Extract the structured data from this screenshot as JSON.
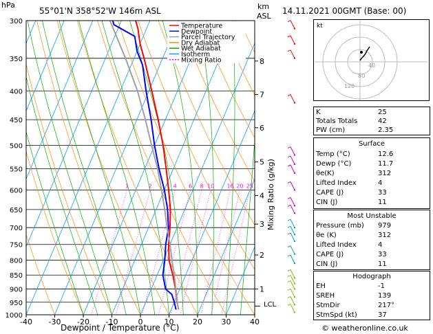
{
  "header": {
    "pressure_unit": "hPa",
    "location": "55°01'N  358°52'W  146m  ASL",
    "km_label": "km",
    "asl_label": "ASL",
    "datetime": "14.11.2021  00GMT  (Base: 00)",
    "credit": "© weatheronline.co.uk"
  },
  "axes": {
    "xlabel": "Dewpoint / Temperature (°C)",
    "ylabel_right": "Mixing Ratio (g/kg)",
    "lcl_label": "LCL",
    "hodograph_unit": "kt",
    "hodo_ring_labels": [
      "40",
      "80",
      "120"
    ]
  },
  "legend": [
    {
      "name": "Temperature",
      "color": "#ff0000",
      "dash": ""
    },
    {
      "name": "Dewpoint",
      "color": "#0000ff",
      "dash": ""
    },
    {
      "name": "Parcel Trajectory",
      "color": "#a0a0a0",
      "dash": ""
    },
    {
      "name": "Dry Adiabat",
      "color": "#ff8c00",
      "dash": ""
    },
    {
      "name": "Wet Adiabat",
      "color": "#00b000",
      "dash": ""
    },
    {
      "name": "Isotherm",
      "color": "#00a0ff",
      "dash": ""
    },
    {
      "name": "Mixing Ratio",
      "color": "#ff00ff",
      "dash": "2,2"
    }
  ],
  "chart_data": {
    "type": "line",
    "title": "55°01'N  358°52'W  146m  ASL",
    "xlabel": "Dewpoint / Temperature (°C)",
    "ylabel": "hPa",
    "xlim": [
      -40,
      40
    ],
    "ylim": [
      1000,
      300
    ],
    "y_scale": "log",
    "x_ticks": [
      -40,
      -30,
      -20,
      -10,
      0,
      10,
      20,
      30,
      40
    ],
    "p_ticks": [
      300,
      350,
      400,
      450,
      500,
      550,
      600,
      650,
      700,
      750,
      800,
      850,
      900,
      950,
      1000
    ],
    "km_ticks": [
      {
        "km": 1,
        "p": 900
      },
      {
        "km": 2,
        "p": 783
      },
      {
        "km": 3,
        "p": 690
      },
      {
        "km": 4,
        "p": 614
      },
      {
        "km": 5,
        "p": 535
      },
      {
        "km": 6,
        "p": 465
      },
      {
        "km": 7,
        "p": 406
      },
      {
        "km": 8,
        "p": 354
      }
    ],
    "mixing_ratio_labels": [
      "1",
      "2",
      "4",
      "6",
      "8",
      "10",
      "16",
      "20",
      "25"
    ],
    "mixing_ratio_values": [
      1,
      2,
      4,
      6,
      8,
      10,
      16,
      20,
      25
    ],
    "lcl_pressure": 965,
    "series": [
      {
        "name": "Temperature",
        "color": "#ff0000",
        "points": [
          [
            979,
            12.6
          ],
          [
            950,
            11.0
          ],
          [
            900,
            8.5
          ],
          [
            850,
            5.5
          ],
          [
            800,
            2.0
          ],
          [
            750,
            -0.5
          ],
          [
            700,
            -2.5
          ],
          [
            650,
            -5.0
          ],
          [
            600,
            -8.5
          ],
          [
            550,
            -12.5
          ],
          [
            500,
            -17.0
          ],
          [
            450,
            -22.5
          ],
          [
            400,
            -29.0
          ],
          [
            350,
            -36.5
          ],
          [
            330,
            -40.0
          ],
          [
            310,
            -43.0
          ],
          [
            300,
            -45.0
          ]
        ]
      },
      {
        "name": "Dewpoint",
        "color": "#0000ff",
        "points": [
          [
            979,
            11.7
          ],
          [
            950,
            10.0
          ],
          [
            920,
            8.0
          ],
          [
            900,
            5.0
          ],
          [
            850,
            2.0
          ],
          [
            800,
            0.5
          ],
          [
            750,
            -1.5
          ],
          [
            700,
            -3.0
          ],
          [
            650,
            -6.0
          ],
          [
            600,
            -10.0
          ],
          [
            550,
            -15.0
          ],
          [
            500,
            -20.0
          ],
          [
            450,
            -25.0
          ],
          [
            400,
            -31.0
          ],
          [
            360,
            -36.0
          ],
          [
            340,
            -40.0
          ],
          [
            320,
            -43.0
          ],
          [
            305,
            -52.0
          ],
          [
            300,
            -53.0
          ]
        ]
      },
      {
        "name": "Parcel Trajectory",
        "color": "#a0a0a0",
        "points": [
          [
            979,
            12.6
          ],
          [
            965,
            11.8
          ],
          [
            900,
            8.6
          ],
          [
            850,
            6.0
          ],
          [
            800,
            3.0
          ],
          [
            750,
            0.0
          ],
          [
            700,
            -3.5
          ],
          [
            650,
            -7.0
          ],
          [
            600,
            -11.0
          ],
          [
            550,
            -15.5
          ],
          [
            500,
            -21.0
          ],
          [
            450,
            -27.0
          ],
          [
            400,
            -34.0
          ],
          [
            350,
            -43.0
          ],
          [
            300,
            -54.0
          ]
        ]
      }
    ]
  },
  "indices": {
    "rows": [
      {
        "label": "K",
        "value": "25"
      },
      {
        "label": "Totals Totals",
        "value": "42"
      },
      {
        "label": "PW (cm)",
        "value": "2.35"
      }
    ]
  },
  "surface": {
    "title": "Surface",
    "rows": [
      {
        "label": "Temp (°C)",
        "value": "12.6"
      },
      {
        "label": "Dewp (°C)",
        "value": "11.7"
      },
      {
        "label": "θe(K)",
        "value": "312"
      },
      {
        "label": "Lifted Index",
        "value": "4"
      },
      {
        "label": "CAPE (J)",
        "value": "33"
      },
      {
        "label": "CIN (J)",
        "value": "11"
      }
    ]
  },
  "most_unstable": {
    "title": "Most Unstable",
    "rows": [
      {
        "label": "Pressure (mb)",
        "value": "979"
      },
      {
        "label": "θe (K)",
        "value": "312"
      },
      {
        "label": "Lifted Index",
        "value": "4"
      },
      {
        "label": "CAPE (J)",
        "value": "33"
      },
      {
        "label": "CIN (J)",
        "value": "11"
      }
    ]
  },
  "hodograph_table": {
    "title": "Hodograph",
    "rows": [
      {
        "label": "EH",
        "value": "-1"
      },
      {
        "label": "SREH",
        "value": "139"
      },
      {
        "label": "StmDir",
        "value": "217°"
      },
      {
        "label": "StmSpd (kt)",
        "value": "37"
      }
    ]
  }
}
